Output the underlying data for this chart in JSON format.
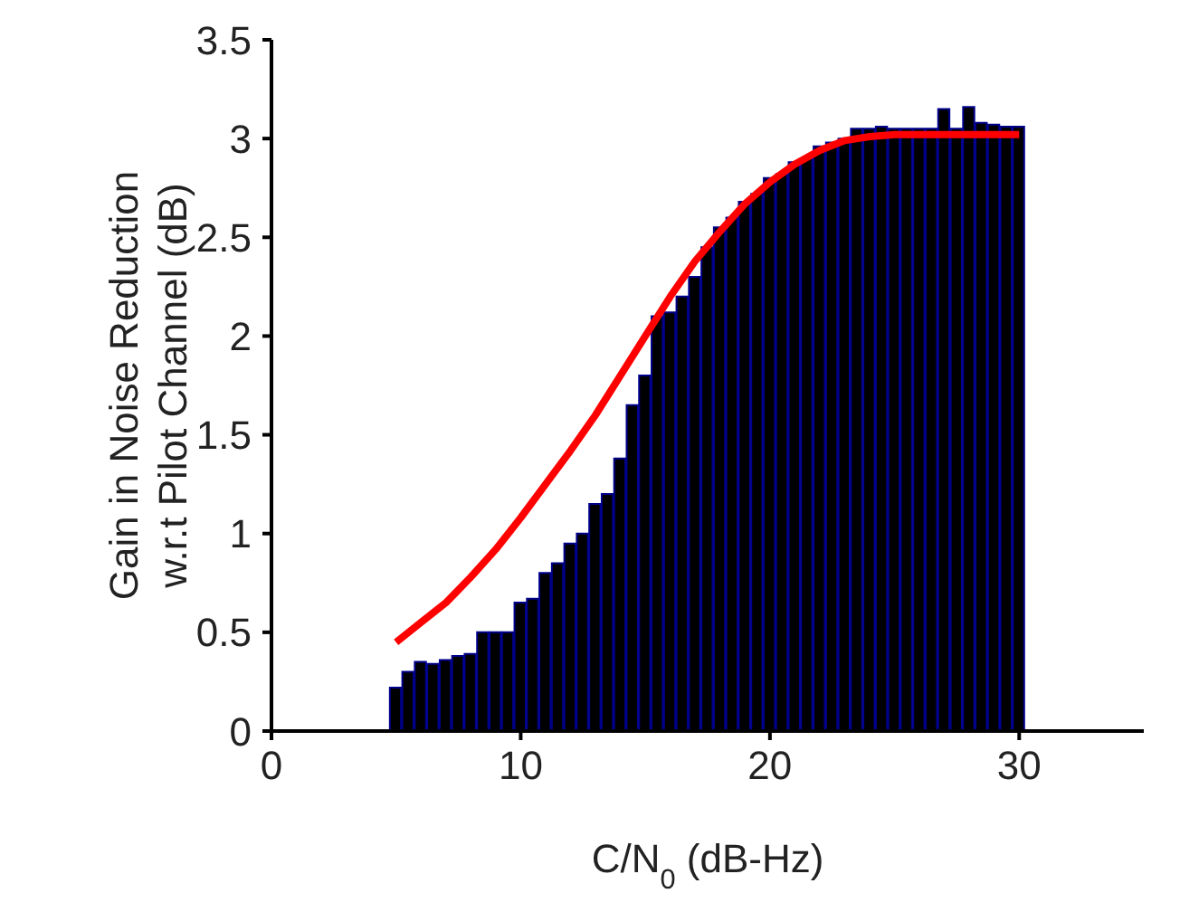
{
  "chart_data": {
    "type": "bar",
    "xlabel": "C/N$_{0}$ (dB-Hz)",
    "ylabel": "Gain in Noise Reduction\nw.r.t Pilot Channel (dB)",
    "xlim": [
      0,
      35
    ],
    "xticks": [
      0,
      10,
      20,
      30
    ],
    "ylim": [
      0,
      3.5
    ],
    "yticks": [
      0,
      0.5,
      1,
      1.5,
      2,
      2.5,
      3,
      3.5
    ],
    "grid": false,
    "legend": false,
    "series": [
      {
        "color": "#000000",
        "x": [
          5,
          5.5,
          6,
          6.5,
          7,
          7.5,
          8,
          8.5,
          9,
          9.5,
          10,
          10.5,
          11,
          11.5,
          12,
          12.5,
          13,
          13.5,
          14,
          14.5,
          15,
          15.5,
          16,
          16.5,
          17,
          17.5,
          18,
          18.5,
          19,
          19.5,
          20,
          20.5,
          21,
          21.5,
          22,
          22.5,
          23,
          23.5,
          24,
          24.5,
          25,
          25.5,
          26,
          26.5,
          27,
          27.5,
          28,
          28.5,
          29,
          29.5,
          30
        ],
        "values": [
          0.22,
          0.3,
          0.35,
          0.34,
          0.36,
          0.38,
          0.39,
          0.5,
          0.5,
          0.5,
          0.65,
          0.67,
          0.8,
          0.85,
          0.95,
          1.0,
          1.15,
          1.2,
          1.38,
          1.65,
          1.8,
          2.1,
          2.12,
          2.2,
          2.3,
          2.45,
          2.55,
          2.6,
          2.68,
          2.72,
          2.8,
          2.82,
          2.88,
          2.9,
          2.96,
          2.98,
          3.0,
          3.05,
          3.05,
          3.06,
          3.05,
          3.05,
          3.05,
          3.05,
          3.15,
          3.05,
          3.16,
          3.08,
          3.07,
          3.06,
          3.06
        ]
      },
      {
        "type": "line",
        "color": "#ff0000",
        "marker": "none",
        "x": [
          5,
          6,
          7,
          8,
          9,
          10,
          11,
          12,
          13,
          14,
          15,
          16,
          17,
          18,
          19,
          20,
          21,
          22,
          23,
          24,
          25,
          27,
          30
        ],
        "values": [
          0.45,
          0.55,
          0.65,
          0.78,
          0.92,
          1.08,
          1.25,
          1.42,
          1.6,
          1.8,
          2.0,
          2.2,
          2.38,
          2.53,
          2.67,
          2.78,
          2.87,
          2.94,
          2.99,
          3.01,
          3.02,
          3.02,
          3.02
        ]
      }
    ]
  }
}
